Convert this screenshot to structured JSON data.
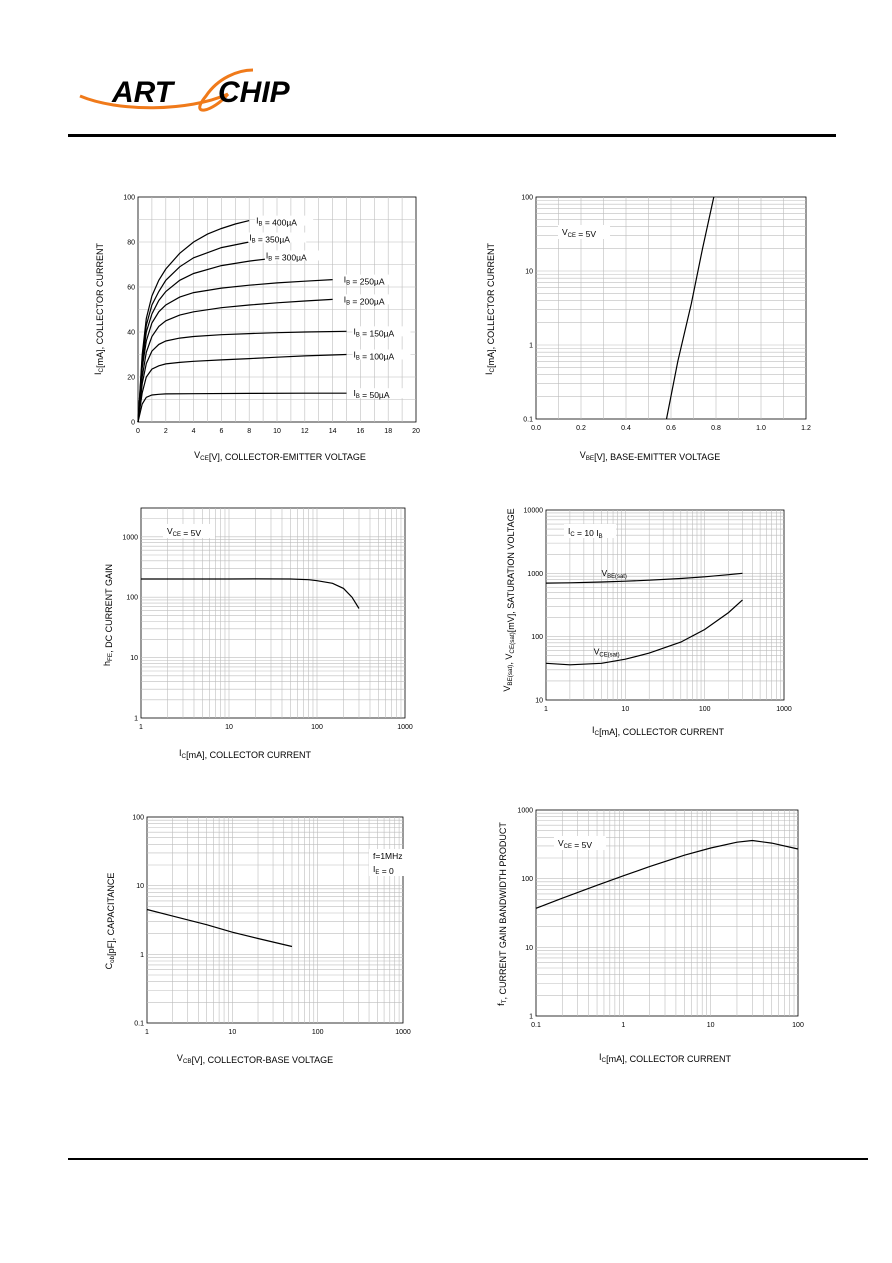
{
  "header": {
    "logo_text_left": "ART",
    "logo_text_right": "CHIP",
    "colors": {
      "logo_swoosh": "#f07a1a",
      "logo_text": "#000000"
    }
  },
  "chart_data": [
    {
      "id": "c1",
      "type": "line",
      "xlabel": "V_CE[V], COLLECTOR-EMITTER VOLTAGE",
      "ylabel": "I_C[mA], COLLECTOR CURRENT",
      "xlim": [
        0,
        20
      ],
      "ylim": [
        0,
        100
      ],
      "xscale": "linear",
      "yscale": "linear",
      "xticks": [
        0,
        2,
        4,
        6,
        8,
        10,
        12,
        14,
        16,
        18,
        20
      ],
      "yticks": [
        0,
        20,
        40,
        60,
        80,
        100
      ],
      "xtick_labels": [
        "0",
        "2",
        "4",
        "6",
        "8",
        "10",
        "12",
        "14",
        "16",
        "18",
        "20"
      ],
      "ytick_labels": [
        "0",
        "20",
        "40",
        "60",
        "80",
        "100"
      ],
      "grid": true,
      "series": [
        {
          "name": "I_B = 400µA",
          "x": [
            0,
            0.3,
            0.6,
            1,
            1.5,
            2,
            3,
            4,
            5,
            6,
            7,
            8
          ],
          "y": [
            0,
            30,
            46,
            56,
            63,
            68,
            75,
            80,
            83.5,
            86,
            88,
            89.5
          ]
        },
        {
          "name": "I_B = 350µA",
          "x": [
            0,
            0.3,
            0.6,
            1,
            1.5,
            2,
            3,
            4,
            6,
            8,
            10
          ],
          "y": [
            0,
            28,
            43,
            52,
            58,
            63,
            69,
            73,
            77.5,
            80,
            82
          ]
        },
        {
          "name": "I_B = 300µA",
          "x": [
            0,
            0.3,
            0.6,
            1,
            1.5,
            2,
            3,
            4,
            6,
            8,
            10,
            12
          ],
          "y": [
            0,
            26,
            40,
            48,
            54,
            58,
            63,
            66,
            69.5,
            71.5,
            73,
            74
          ]
        },
        {
          "name": "I_B = 250µA",
          "x": [
            0,
            0.3,
            0.6,
            1,
            1.5,
            2,
            3,
            4,
            6,
            8,
            10,
            12,
            14
          ],
          "y": [
            0,
            24,
            36,
            44,
            49,
            52,
            55.5,
            57.5,
            59.5,
            60.8,
            61.8,
            62.6,
            63.3
          ]
        },
        {
          "name": "I_B = 200µA",
          "x": [
            0,
            0.3,
            0.6,
            1,
            1.5,
            2,
            3,
            4,
            6,
            8,
            10,
            12,
            14
          ],
          "y": [
            0,
            20,
            31,
            38,
            42.5,
            45,
            47.5,
            49,
            50.8,
            52,
            53,
            53.8,
            54.5
          ]
        },
        {
          "name": "I_B = 150µA",
          "x": [
            0,
            0.3,
            0.6,
            1,
            1.5,
            2,
            3,
            4,
            6,
            8,
            10,
            12,
            15
          ],
          "y": [
            0,
            17,
            26,
            31.5,
            34.5,
            36,
            37.3,
            38,
            38.8,
            39.3,
            39.7,
            40,
            40.3
          ]
        },
        {
          "name": "I_B = 100µA",
          "x": [
            0,
            0.3,
            0.6,
            1,
            1.5,
            2,
            3,
            4,
            6,
            8,
            10,
            12,
            15
          ],
          "y": [
            0,
            13,
            20,
            23.5,
            25,
            25.8,
            26.5,
            27,
            27.6,
            28.2,
            28.8,
            29.4,
            30
          ]
        },
        {
          "name": "I_B = 50µA",
          "x": [
            0,
            0.3,
            0.6,
            1,
            1.5,
            2,
            4,
            8,
            12,
            15
          ],
          "y": [
            0,
            8,
            11,
            12,
            12.3,
            12.5,
            12.6,
            12.7,
            12.8,
            12.8
          ]
        }
      ]
    },
    {
      "id": "c2",
      "type": "line",
      "xlabel": "V_BE[V], BASE-EMITTER VOLTAGE",
      "ylabel": "I_C[mA], COLLECTOR CURRENT",
      "xlim": [
        0,
        1.2
      ],
      "ylim": [
        0.1,
        100
      ],
      "xscale": "linear",
      "yscale": "log",
      "xticks": [
        0,
        0.2,
        0.4,
        0.6,
        0.8,
        1.0,
        1.2
      ],
      "yticks": [
        0.1,
        1,
        10,
        100
      ],
      "xtick_labels": [
        "0.0",
        "0.2",
        "0.4",
        "0.6",
        "0.8",
        "1.0",
        "1.2"
      ],
      "ytick_labels": [
        "0.1",
        "1",
        "10",
        "100"
      ],
      "annotations": [
        "V_CE = 5V"
      ],
      "grid": true,
      "series": [
        {
          "name": "",
          "x": [
            0.58,
            0.63,
            0.69,
            0.74,
            0.79
          ],
          "y": [
            0.1,
            0.6,
            3.6,
            20,
            100
          ]
        }
      ]
    },
    {
      "id": "c3",
      "type": "line",
      "xlabel": "I_C[mA], COLLECTOR CURRENT",
      "ylabel": "h_FE, DC CURRENT GAIN",
      "xlim": [
        1,
        1000
      ],
      "ylim": [
        1,
        3000
      ],
      "xscale": "log",
      "yscale": "log",
      "xticks": [
        1,
        10,
        100,
        1000
      ],
      "yticks": [
        1,
        10,
        100,
        1000
      ],
      "xtick_labels": [
        "1",
        "10",
        "100",
        "1000"
      ],
      "ytick_labels": [
        "1",
        "10",
        "100",
        "1000"
      ],
      "annotations": [
        "V_CE = 5V"
      ],
      "grid": true,
      "series": [
        {
          "name": "",
          "x": [
            1,
            2,
            5,
            10,
            20,
            50,
            80,
            100,
            150,
            200,
            250,
            300
          ],
          "y": [
            200,
            200,
            200,
            200,
            201,
            200,
            195,
            188,
            170,
            140,
            100,
            65
          ]
        }
      ]
    },
    {
      "id": "c4",
      "type": "line",
      "xlabel": "I_C[mA], COLLECTOR CURRENT",
      "ylabel": "V_BE(sat), V_CE(sat)[mV], SATURATION VOLTAGE",
      "xlim": [
        1,
        1000
      ],
      "ylim": [
        10,
        10000
      ],
      "xscale": "log",
      "yscale": "log",
      "xticks": [
        1,
        10,
        100,
        1000
      ],
      "yticks": [
        10,
        100,
        1000,
        10000
      ],
      "xtick_labels": [
        "1",
        "10",
        "100",
        "1000"
      ],
      "ytick_labels": [
        "10",
        "100",
        "1000",
        "10000"
      ],
      "annotations": [
        "I_C = 10 I_B"
      ],
      "grid": true,
      "series": [
        {
          "name": "V_BE(sat)",
          "x": [
            1,
            2,
            5,
            10,
            20,
            50,
            100,
            200,
            300
          ],
          "y": [
            700,
            710,
            730,
            750,
            780,
            830,
            880,
            950,
            1000
          ]
        },
        {
          "name": "V_CE(sat)",
          "x": [
            1,
            2,
            5,
            10,
            20,
            50,
            100,
            200,
            300
          ],
          "y": [
            38,
            36,
            38,
            44,
            55,
            82,
            130,
            240,
            380
          ]
        }
      ]
    },
    {
      "id": "c5",
      "type": "line",
      "xlabel": "V_CB[V], COLLECTOR-BASE VOLTAGE",
      "ylabel": "C_ob[pF], CAPACITANCE",
      "xlim": [
        1,
        1000
      ],
      "ylim": [
        0.1,
        100
      ],
      "xscale": "log",
      "yscale": "log",
      "xticks": [
        1,
        10,
        100,
        1000
      ],
      "yticks": [
        0.1,
        1,
        10,
        100
      ],
      "xtick_labels": [
        "1",
        "10",
        "100",
        "1000"
      ],
      "ytick_labels": [
        "0.1",
        "1",
        "10",
        "100"
      ],
      "annotations": [
        "f=1MHz",
        "I_E = 0"
      ],
      "grid": true,
      "series": [
        {
          "name": "",
          "x": [
            1,
            2,
            5,
            10,
            20,
            50
          ],
          "y": [
            4.5,
            3.6,
            2.7,
            2.1,
            1.7,
            1.3
          ]
        }
      ]
    },
    {
      "id": "c6",
      "type": "line",
      "xlabel": "I_C[mA], COLLECTOR CURRENT",
      "ylabel": "f_T, CURRENT GAIN BANDWIDTH PRODUCT",
      "xlim": [
        0.1,
        100
      ],
      "ylim": [
        1,
        1000
      ],
      "xscale": "log",
      "yscale": "log",
      "xticks": [
        0.1,
        1,
        10,
        100
      ],
      "yticks": [
        1,
        10,
        100,
        1000
      ],
      "xtick_labels": [
        "0.1",
        "1",
        "10",
        "100"
      ],
      "ytick_labels": [
        "1",
        "10",
        "100",
        "1000"
      ],
      "annotations": [
        "V_CE = 5V"
      ],
      "grid": true,
      "series": [
        {
          "name": "",
          "x": [
            0.1,
            0.2,
            0.5,
            1,
            2,
            5,
            10,
            20,
            30,
            50,
            100
          ],
          "y": [
            37,
            52,
            80,
            110,
            150,
            220,
            280,
            340,
            360,
            330,
            270
          ]
        }
      ]
    }
  ]
}
